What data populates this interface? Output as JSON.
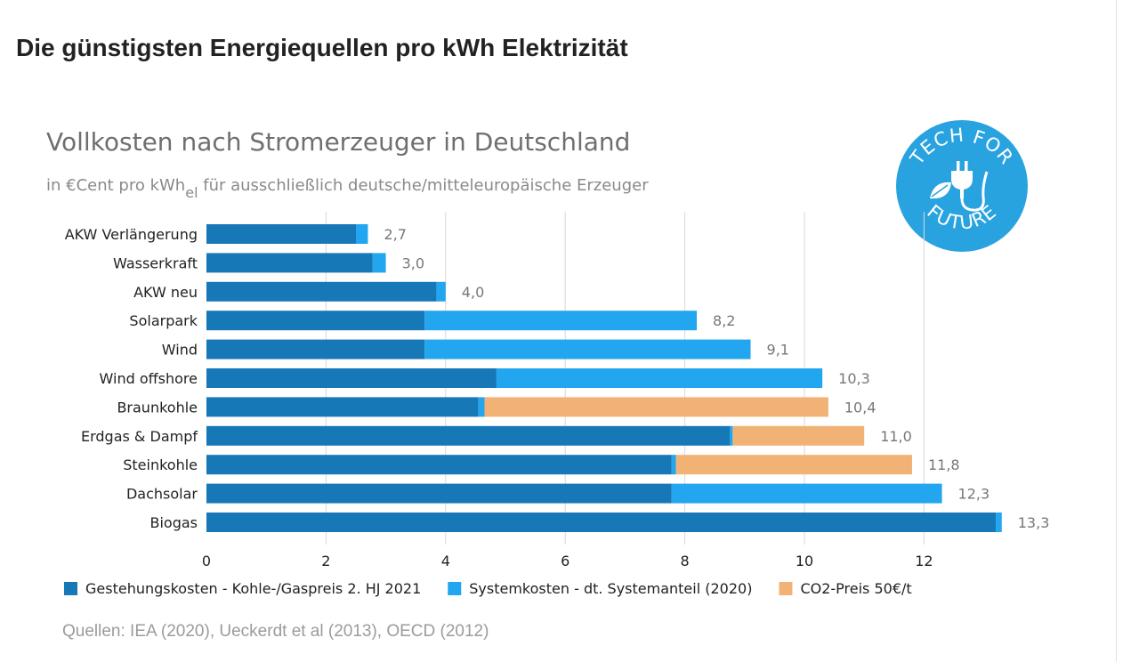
{
  "page": {
    "title": "Die günstigsten Energiequellen pro kWh Elektrizität"
  },
  "logo": {
    "top_text": "TECH FOR",
    "bottom_text": "FUTURE",
    "color": "#29a3e0"
  },
  "chart_data": {
    "type": "bar",
    "orientation": "horizontal",
    "stacked": true,
    "title": "Vollkosten nach Stromerzeuger in Deutschland",
    "subtitle": {
      "before": "in €Cent pro kWh",
      "subscript": "el",
      "after": " für ausschließlich deutsche/mitteleuropäische Erzeuger"
    },
    "categories": [
      "AKW Verlängerung",
      "Wasserkraft",
      "AKW neu",
      "Solarpark",
      "Wind",
      "Wind offshore",
      "Braunkohle",
      "Erdgas & Dampf",
      "Steinkohle",
      "Dachsolar",
      "Biogas"
    ],
    "series": [
      {
        "name": "Gestehungskosten - Kohle-/Gaspreis 2. HJ 2021",
        "color": "#1778b8",
        "values": [
          2.5,
          2.78,
          3.85,
          3.65,
          3.65,
          4.85,
          4.55,
          8.75,
          7.78,
          7.78,
          13.2
        ]
      },
      {
        "name": "Systemkosten - dt. Systemanteil (2020)",
        "color": "#22a6ef",
        "values": [
          0.2,
          0.22,
          0.15,
          4.55,
          5.45,
          5.45,
          0.1,
          0.05,
          0.07,
          4.52,
          0.1
        ]
      },
      {
        "name": "CO2-Preis 50€/t",
        "color": "#f3b275",
        "values": [
          0,
          0,
          0,
          0,
          0,
          0,
          5.75,
          2.2,
          3.95,
          0,
          0
        ]
      }
    ],
    "totals": [
      "2,7",
      "3,0",
      "4,0",
      "8,2",
      "9,1",
      "10,3",
      "10,4",
      "11,0",
      "11,8",
      "12,3",
      "13,3"
    ],
    "x_ticks": [
      "0",
      "2",
      "4",
      "6",
      "8",
      "10",
      "12"
    ],
    "xlim": [
      0,
      14
    ],
    "grid": true,
    "legend_position": "bottom",
    "source": "Quellen: IEA (2020), Ueckerdt et al (2013), OECD (2012)"
  }
}
